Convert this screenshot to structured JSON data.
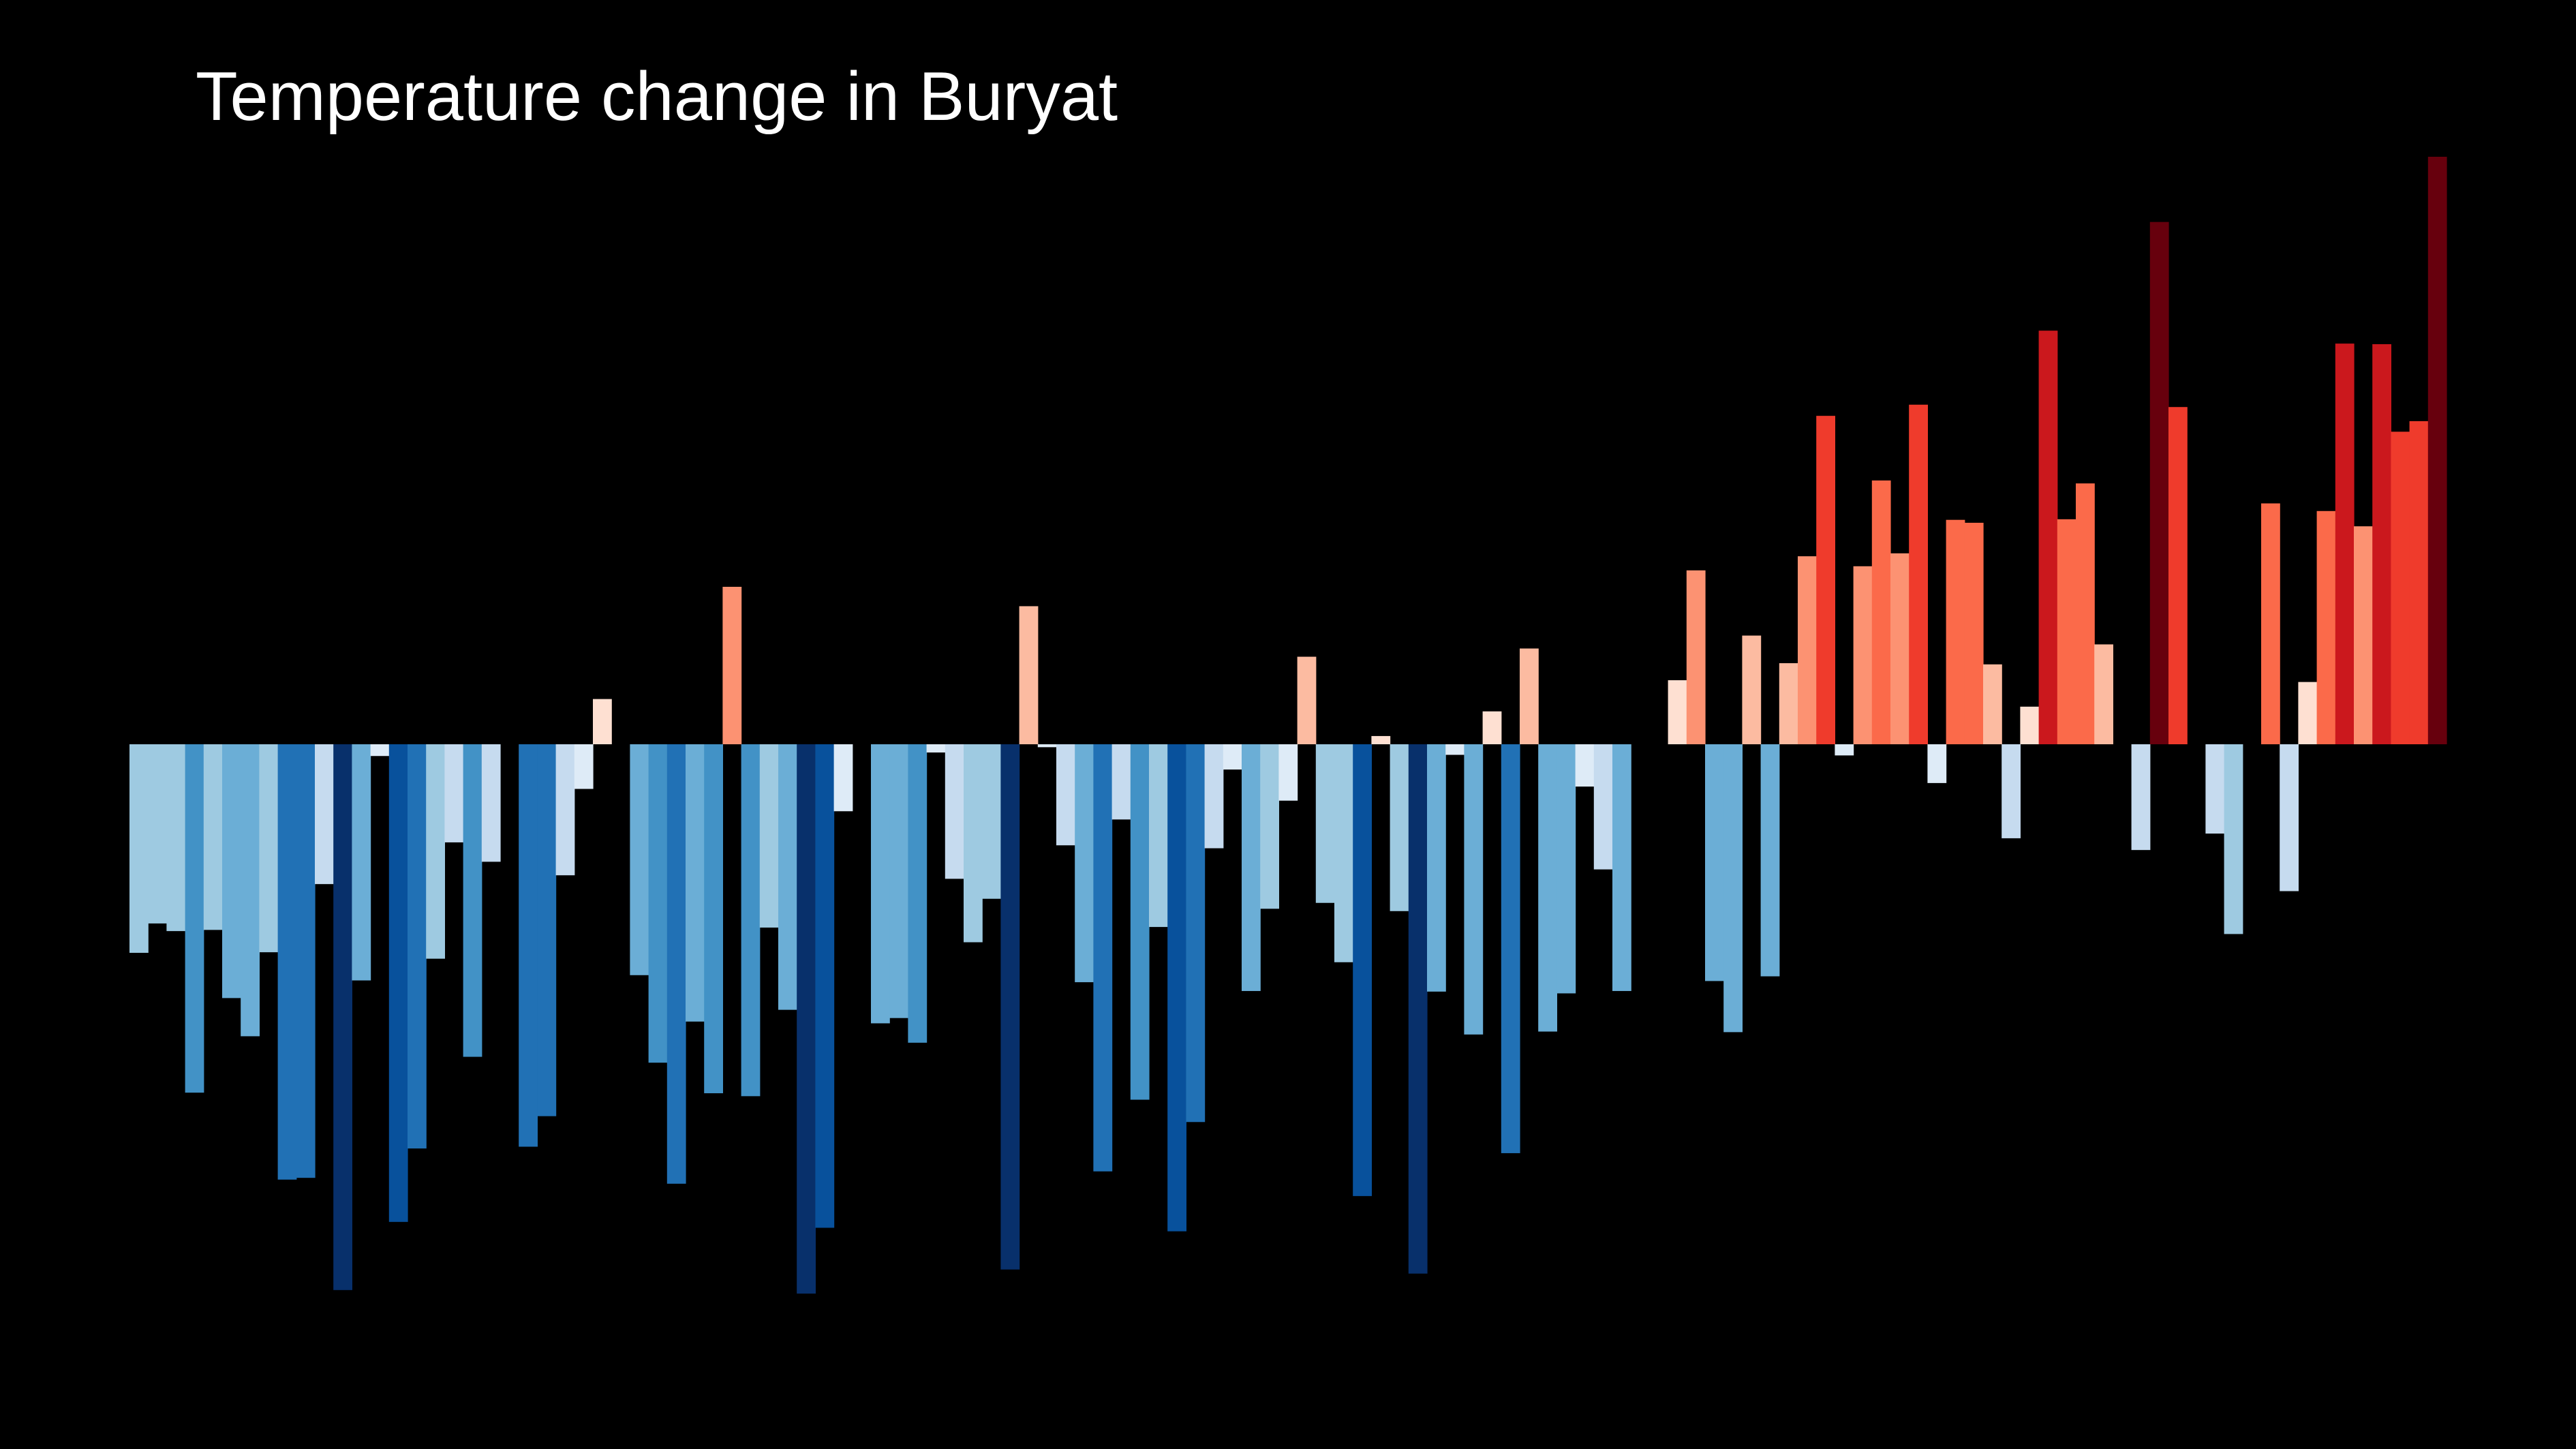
{
  "chart_data": {
    "type": "bar",
    "title": "Temperature change in Buryat",
    "xlabel": "",
    "ylabel": "",
    "ylim": [
      -1.0,
      1.0
    ],
    "grid": false,
    "legend": "none",
    "background": "#000000",
    "title_color": "#ffffff",
    "colors": {
      "cold_extreme": "#08306b",
      "cold_strong": "#08519c",
      "cold_mid": "#2171b5",
      "cold_light": "#4292c6",
      "cold_pale": "#6baed6",
      "cold_faint": "#9ecae1",
      "cold_trace": "#c6dbef",
      "neutral_cool": "#deebf7",
      "neutral_warm": "#fee0d2",
      "warm_trace": "#fcbba1",
      "warm_faint": "#fc9272",
      "warm_pale": "#fb6a4a",
      "warm_mid": "#ef3b2c",
      "warm_strong": "#cb181d",
      "warm_deep": "#a50f15",
      "warm_extreme": "#67000d"
    },
    "values": [
      -0.355,
      -0.305,
      -0.318,
      -0.593,
      -0.316,
      -0.432,
      -0.497,
      -0.354,
      -0.741,
      -0.738,
      -0.238,
      -0.929,
      -0.402,
      -0.02,
      -0.813,
      -0.688,
      -0.365,
      -0.167,
      -0.532,
      -0.2,
      0.0,
      -0.685,
      -0.633,
      -0.223,
      -0.076,
      0.077,
      0.0,
      -0.393,
      -0.542,
      -0.748,
      -0.472,
      -0.594,
      0.268,
      -0.599,
      -0.312,
      -0.452,
      -0.935,
      -0.823,
      -0.114,
      0.0,
      -0.475,
      -0.466,
      -0.508,
      -0.014,
      -0.229,
      -0.337,
      -0.263,
      -0.894,
      0.235,
      -0.005,
      -0.172,
      -0.405,
      -0.727,
      -0.128,
      -0.605,
      -0.311,
      -0.829,
      -0.643,
      -0.177,
      -0.043,
      -0.42,
      -0.28,
      -0.096,
      0.149,
      -0.27,
      -0.371,
      -0.769,
      0.014,
      -0.284,
      -0.901,
      -0.421,
      -0.018,
      -0.494,
      0.056,
      -0.696,
      0.163,
      -0.489,
      -0.424,
      -0.072,
      -0.213,
      -0.42,
      0.0,
      0.0,
      0.109,
      0.296,
      -0.403,
      -0.49,
      0.185,
      -0.395,
      0.138,
      0.32,
      0.559,
      -0.019,
      0.303,
      0.449,
      0.325,
      0.578,
      -0.066,
      0.382,
      0.377,
      0.136,
      -0.16,
      0.064,
      0.704,
      0.383,
      0.444,
      0.17,
      0.0,
      -0.18,
      0.889,
      0.574,
      0.0,
      -0.152,
      -0.323,
      0.0,
      0.41,
      -0.25,
      0.106,
      0.397,
      0.682,
      0.371,
      0.681,
      0.532,
      0.55,
      1.0
    ]
  }
}
